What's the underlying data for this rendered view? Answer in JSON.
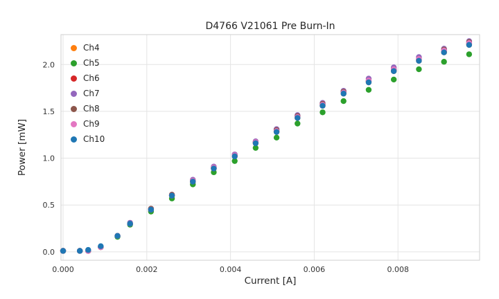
{
  "chart_data": {
    "type": "scatter",
    "title": "D4766 V21061 Pre Burn-In",
    "xlabel": "Current [A]",
    "ylabel": "Power [mW]",
    "xlim": [
      -5e-05,
      0.00995
    ],
    "ylim": [
      -0.09,
      2.32
    ],
    "grid": true,
    "legend_position": "upper left",
    "marker_radius": 4.2,
    "colors": {
      "grid": "#e4e4e4",
      "spine": "#cfcfcf",
      "tick_text": "#333333"
    },
    "xticks": {
      "values": [
        0.0,
        0.002,
        0.004,
        0.006,
        0.008
      ],
      "labels": [
        "0.000",
        "0.002",
        "0.004",
        "0.006",
        "0.008"
      ]
    },
    "yticks": {
      "values": [
        0.0,
        0.5,
        1.0,
        1.5,
        2.0
      ],
      "labels": [
        "0.0",
        "0.5",
        "1.0",
        "1.5",
        "2.0"
      ]
    },
    "x": [
      0.0,
      0.0004,
      0.0006,
      0.0009,
      0.0013,
      0.0016,
      0.0021,
      0.0026,
      0.0031,
      0.0036,
      0.0041,
      0.0046,
      0.0051,
      0.0056,
      0.0062,
      0.0067,
      0.0073,
      0.0079,
      0.0085,
      0.0091,
      0.0097
    ],
    "series": [
      {
        "name": "Ch4",
        "color": "#ff7f0e",
        "values": [
          0.01,
          0.01,
          0.01,
          0.05,
          0.17,
          0.3,
          0.45,
          0.6,
          0.75,
          0.89,
          1.02,
          1.16,
          1.28,
          1.43,
          1.56,
          1.69,
          1.81,
          1.93,
          2.04,
          2.13,
          2.21
        ]
      },
      {
        "name": "Ch5",
        "color": "#2ca02c",
        "values": [
          0.01,
          0.01,
          0.01,
          0.05,
          0.16,
          0.29,
          0.43,
          0.57,
          0.72,
          0.85,
          0.97,
          1.11,
          1.22,
          1.37,
          1.49,
          1.61,
          1.73,
          1.84,
          1.95,
          2.03,
          2.11
        ]
      },
      {
        "name": "Ch6",
        "color": "#d62728",
        "values": [
          0.01,
          0.01,
          0.01,
          0.05,
          0.17,
          0.3,
          0.45,
          0.6,
          0.75,
          0.89,
          1.03,
          1.17,
          1.29,
          1.44,
          1.57,
          1.7,
          1.82,
          1.94,
          2.05,
          2.14,
          2.22
        ]
      },
      {
        "name": "Ch7",
        "color": "#9467bd",
        "values": [
          0.01,
          0.01,
          0.01,
          0.05,
          0.17,
          0.31,
          0.46,
          0.61,
          0.77,
          0.91,
          1.04,
          1.18,
          1.31,
          1.46,
          1.59,
          1.72,
          1.85,
          1.97,
          2.08,
          2.17,
          2.25
        ]
      },
      {
        "name": "Ch8",
        "color": "#8c564b",
        "values": [
          0.01,
          0.01,
          0.01,
          0.05,
          0.17,
          0.3,
          0.46,
          0.61,
          0.76,
          0.9,
          1.03,
          1.17,
          1.3,
          1.45,
          1.58,
          1.71,
          1.83,
          1.95,
          2.06,
          2.16,
          2.24
        ]
      },
      {
        "name": "Ch9",
        "color": "#e377c2",
        "values": [
          0.01,
          0.01,
          0.01,
          0.05,
          0.17,
          0.3,
          0.45,
          0.6,
          0.76,
          0.9,
          1.03,
          1.17,
          1.29,
          1.44,
          1.57,
          1.7,
          1.83,
          1.95,
          2.06,
          2.15,
          2.23
        ]
      },
      {
        "name": "Ch10",
        "color": "#1f77b4",
        "values": [
          0.01,
          0.01,
          0.02,
          0.06,
          0.17,
          0.3,
          0.45,
          0.6,
          0.75,
          0.89,
          1.02,
          1.16,
          1.28,
          1.43,
          1.56,
          1.69,
          1.81,
          1.93,
          2.04,
          2.13,
          2.21
        ]
      }
    ]
  }
}
